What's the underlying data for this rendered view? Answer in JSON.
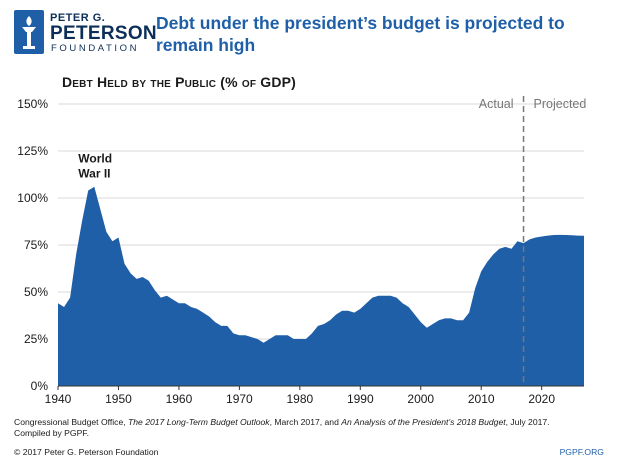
{
  "logo": {
    "line1": "PETER G.",
    "line2": "PETERSON",
    "line3": "FOUNDATION"
  },
  "headline": "Debt under the president’s budget is projected to remain high",
  "colors": {
    "area": "#1f5fa8",
    "divider": "#777777",
    "grid": "#cccccc",
    "headline": "#1f5fa8"
  },
  "chart_data": {
    "type": "area",
    "title": "Debt Held by the Public (% of GDP)",
    "xlabel": "",
    "ylabel": "",
    "xlim": [
      1940,
      2027
    ],
    "ylim": [
      0,
      150
    ],
    "x_ticks": [
      1940,
      1950,
      1960,
      1970,
      1980,
      1990,
      2000,
      2010,
      2020
    ],
    "x_tick_labels": [
      "1940",
      "1950",
      "1960",
      "1970",
      "1980",
      "1990",
      "2000",
      "2010",
      "2020"
    ],
    "y_ticks": [
      0,
      25,
      50,
      75,
      100,
      125,
      150
    ],
    "y_tick_labels": [
      "0%",
      "25%",
      "50%",
      "75%",
      "100%",
      "125%",
      "150%"
    ],
    "grid": "horizontal",
    "divider_year": 2017,
    "region_labels": [
      "Actual",
      "Projected"
    ],
    "annotation": {
      "text_lines": [
        "World",
        "War II"
      ],
      "x": 1946,
      "y": 106
    },
    "series": [
      {
        "name": "Debt held by the public",
        "x": [
          1940,
          1941,
          1942,
          1943,
          1944,
          1945,
          1946,
          1947,
          1948,
          1949,
          1950,
          1951,
          1952,
          1953,
          1954,
          1955,
          1956,
          1957,
          1958,
          1959,
          1960,
          1961,
          1962,
          1963,
          1964,
          1965,
          1966,
          1967,
          1968,
          1969,
          1970,
          1971,
          1972,
          1973,
          1974,
          1975,
          1976,
          1977,
          1978,
          1979,
          1980,
          1981,
          1982,
          1983,
          1984,
          1985,
          1986,
          1987,
          1988,
          1989,
          1990,
          1991,
          1992,
          1993,
          1994,
          1995,
          1996,
          1997,
          1998,
          1999,
          2000,
          2001,
          2002,
          2003,
          2004,
          2005,
          2006,
          2007,
          2008,
          2009,
          2010,
          2011,
          2012,
          2013,
          2014,
          2015,
          2016,
          2017,
          2018,
          2019,
          2020,
          2021,
          2022,
          2023,
          2024,
          2025,
          2026,
          2027
        ],
        "values": [
          44,
          42,
          47,
          70,
          88,
          104,
          106,
          94,
          82,
          77,
          79,
          65,
          60,
          57,
          58,
          56,
          51,
          47,
          48,
          46,
          44,
          44,
          42,
          41,
          39,
          37,
          34,
          32,
          32,
          28,
          27,
          27,
          26,
          25,
          23,
          25,
          27,
          27,
          27,
          25,
          25,
          25,
          28,
          32,
          33,
          35,
          38,
          40,
          40,
          39,
          41,
          44,
          47,
          48,
          48,
          48,
          47,
          44,
          42,
          38,
          34,
          31,
          33,
          35,
          36,
          36,
          35,
          35,
          39,
          52,
          61,
          66,
          70,
          73,
          74,
          73,
          77,
          76,
          78,
          79,
          79.5,
          80,
          80.3,
          80.4,
          80.3,
          80.2,
          80,
          79.9
        ]
      }
    ]
  },
  "source": {
    "prefix": "Congressional Budget Office, ",
    "italic1": "The 2017 Long-Term Budget Outlook",
    "mid": ", March 2017, and ",
    "italic2": "An Analysis of the President’s 2018 Budget",
    "suffix": ", July 2017.",
    "line2": "Compiled by PGPF."
  },
  "footer": {
    "copyright": "© 2017 Peter G. Peterson Foundation",
    "site": "PGPF.ORG"
  }
}
